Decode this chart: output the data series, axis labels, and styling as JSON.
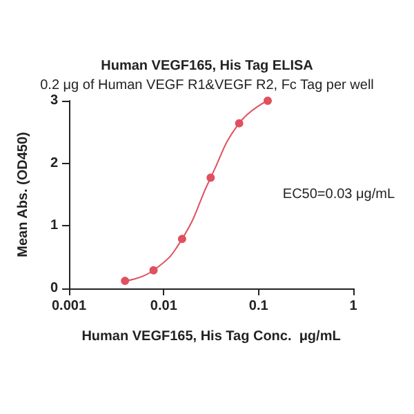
{
  "chart_data": {
    "type": "line",
    "title": "Human VEGF165, His Tag ELISA",
    "subtitle": "0.2 μg of Human VEGF R1&VEGF R2, Fc Tag per well",
    "xlabel": "Human VEGF165, His Tag Conc.  μg/mL",
    "ylabel": "Mean Abs. (OD450)",
    "annotations": [
      "EC50=0.03 μg/mL"
    ],
    "x": [
      0.0039,
      0.0078,
      0.0156,
      0.03125,
      0.0625,
      0.125
    ],
    "series": [
      {
        "color": "#e0505e",
        "values": [
          0.12,
          0.29,
          0.79,
          1.77,
          2.64,
          3.0
        ]
      }
    ],
    "log": "x",
    "xlim": [
      0.001,
      1
    ],
    "xticks": [
      0.001,
      0.01,
      0.1,
      1
    ],
    "ylim": [
      0,
      3
    ],
    "yticks": [
      0,
      1,
      2,
      3
    ],
    "grid": false,
    "marker": "circle",
    "line_style": "solid"
  }
}
